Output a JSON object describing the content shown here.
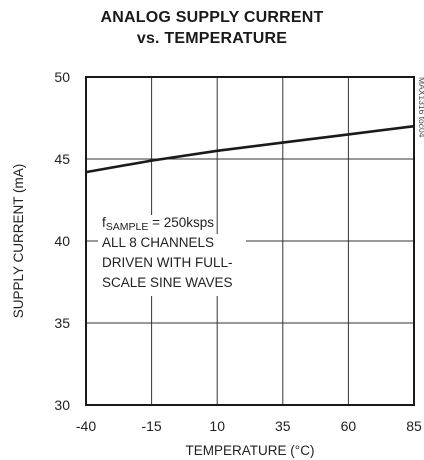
{
  "chart_data": {
    "type": "line",
    "title": "ANALOG SUPPLY CURRENT",
    "subtitle": "vs. TEMPERATURE",
    "xlabel": "TEMPERATURE (°C)",
    "ylabel": "SUPPLY CURRENT (mA)",
    "xlim": [
      -40,
      85
    ],
    "ylim": [
      30,
      50
    ],
    "x_ticks": [
      "-40",
      "-15",
      "10",
      "35",
      "60",
      "85"
    ],
    "y_ticks": [
      "50",
      "45",
      "40",
      "35",
      "30"
    ],
    "grid": true,
    "series": [
      {
        "x": [
          -40,
          -15,
          10,
          35,
          60,
          85
        ],
        "y": [
          44.2,
          44.9,
          45.5,
          46.0,
          46.5,
          47.0
        ]
      }
    ],
    "annotation": {
      "f_symbol": "f",
      "f_subscript": "SAMPLE",
      "f_value": " = 250ksps",
      "lines": [
        "ALL 8 CHANNELS",
        "DRIVEN WITH FULL-",
        "SCALE SINE WAVES"
      ]
    },
    "figure_id": "MAX1316 toc04"
  }
}
